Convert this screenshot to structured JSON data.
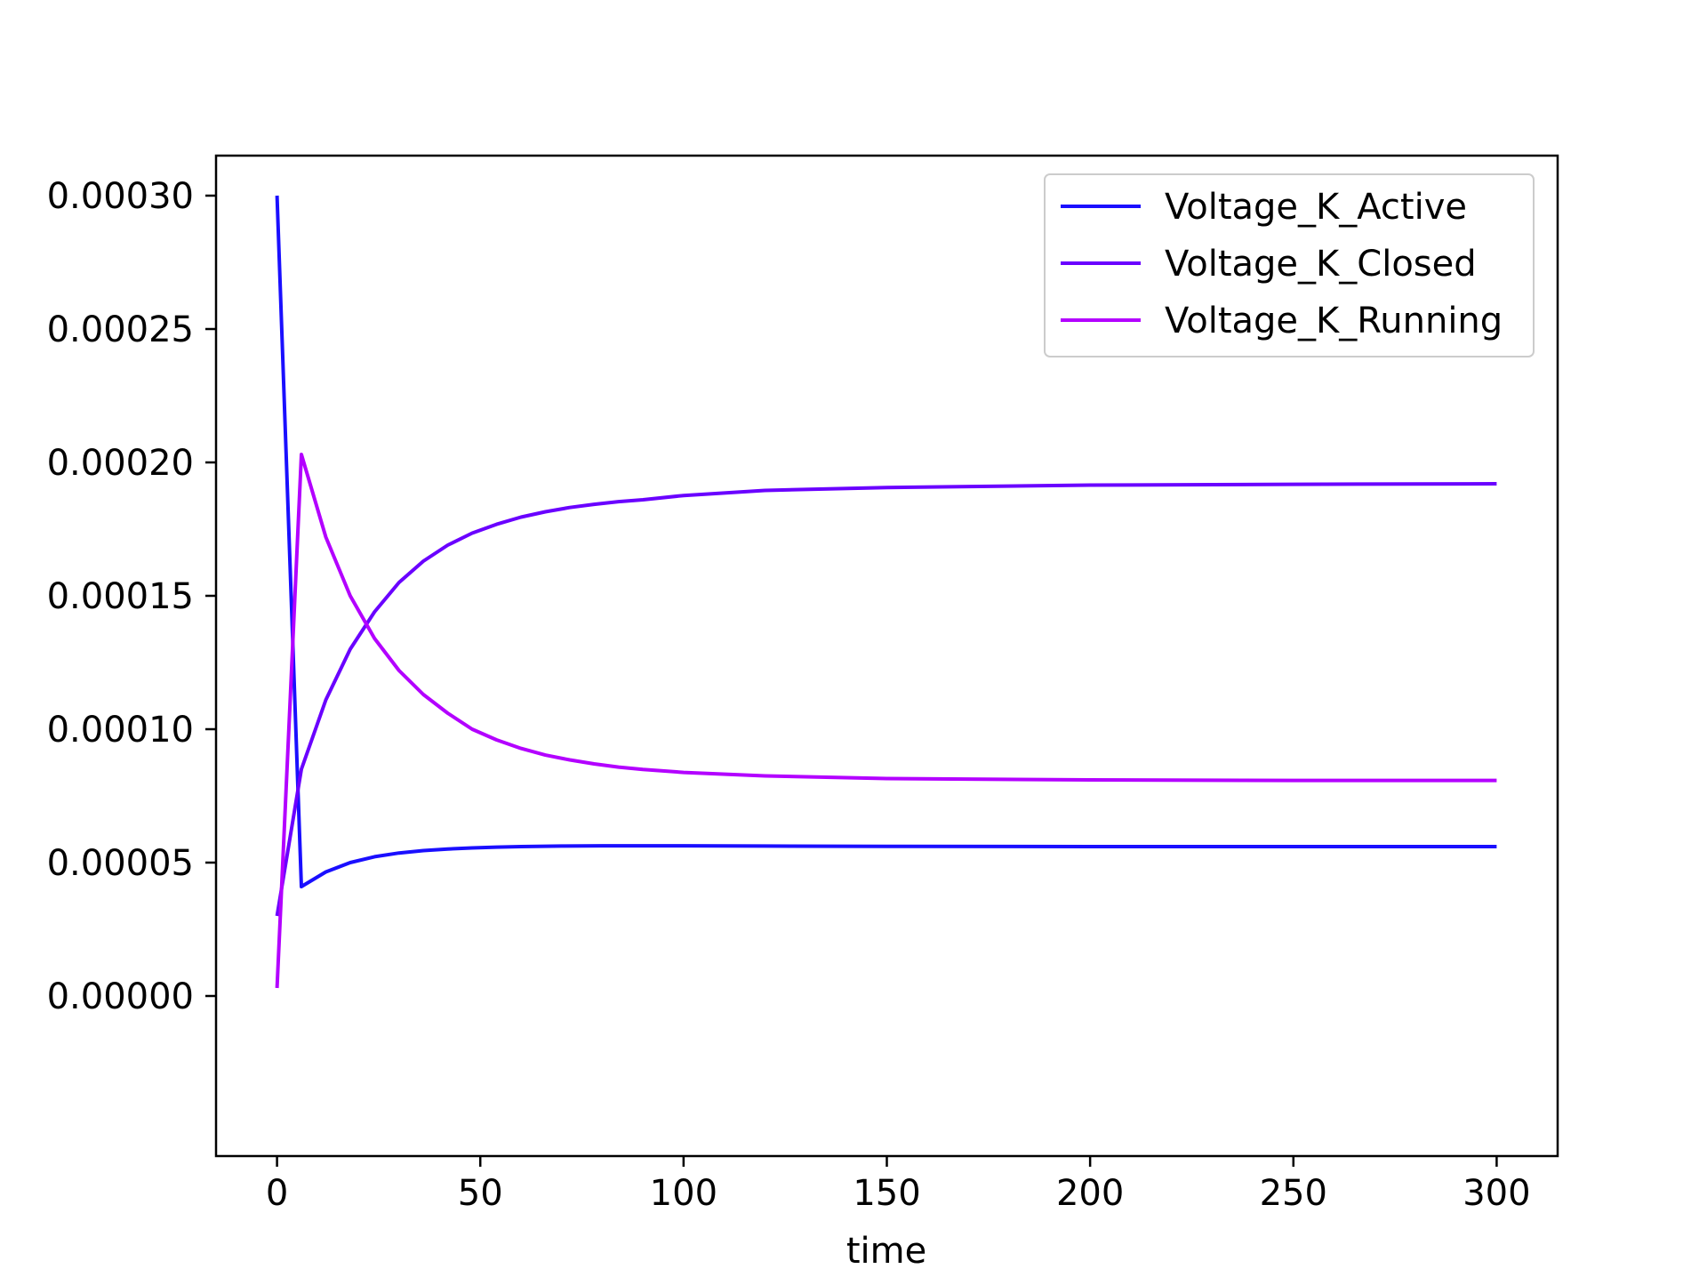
{
  "chart_data": {
    "type": "line",
    "title": "",
    "xlabel": "time",
    "ylabel": "",
    "xlim": [
      -15,
      315
    ],
    "ylim": [
      -6e-05,
      0.000315
    ],
    "xticks": [
      0,
      50,
      100,
      150,
      200,
      250,
      300
    ],
    "xtick_labels": [
      "0",
      "50",
      "100",
      "150",
      "200",
      "250",
      "300"
    ],
    "yticks": [
      0.0,
      5e-05,
      0.0001,
      0.00015,
      0.0002,
      0.00025,
      0.0003
    ],
    "ytick_labels": [
      "0.00000",
      "0.00005",
      "0.00010",
      "0.00015",
      "0.00020",
      "0.00025",
      "0.00030"
    ],
    "grid": false,
    "legend": {
      "position": "top-right"
    },
    "series": [
      {
        "name": "Voltage_K_Active",
        "color": "#1a0fff",
        "x": [
          0,
          6,
          12,
          18,
          24,
          30,
          36,
          42,
          48,
          54,
          60,
          70,
          80,
          90,
          100,
          120,
          150,
          200,
          250,
          300
        ],
        "y": [
          0.0003,
          4.1e-05,
          4.65e-05,
          5e-05,
          5.22e-05,
          5.36e-05,
          5.45e-05,
          5.51e-05,
          5.55e-05,
          5.58e-05,
          5.6e-05,
          5.62e-05,
          5.63e-05,
          5.63e-05,
          5.63e-05,
          5.62e-05,
          5.61e-05,
          5.6e-05,
          5.6e-05,
          5.6e-05
        ]
      },
      {
        "name": "Voltage_K_Closed",
        "color": "#6a00ff",
        "x": [
          0,
          6,
          12,
          18,
          24,
          30,
          36,
          42,
          48,
          54,
          60,
          66,
          72,
          78,
          84,
          90,
          100,
          120,
          150,
          200,
          250,
          300
        ],
        "y": [
          3e-05,
          8.5e-05,
          0.000111,
          0.00013,
          0.000144,
          0.000155,
          0.000163,
          0.000169,
          0.0001735,
          0.0001768,
          0.0001795,
          0.0001815,
          0.0001831,
          0.0001843,
          0.0001853,
          0.000186,
          0.0001876,
          0.0001895,
          0.0001906,
          0.0001915,
          0.0001918,
          0.000192
        ]
      },
      {
        "name": "Voltage_K_Running",
        "color": "#b300ff",
        "x": [
          0,
          6,
          12,
          18,
          24,
          30,
          36,
          42,
          48,
          54,
          60,
          66,
          72,
          78,
          84,
          90,
          100,
          120,
          150,
          200,
          250,
          300
        ],
        "y": [
          3e-06,
          0.000203,
          0.000172,
          0.00015,
          0.000134,
          0.000122,
          0.000113,
          0.000106,
          0.0001,
          9.6e-05,
          9.28e-05,
          9.03e-05,
          8.85e-05,
          8.7e-05,
          8.58e-05,
          8.49e-05,
          8.38e-05,
          8.25e-05,
          8.15e-05,
          8.1e-05,
          8.08e-05,
          8.08e-05
        ]
      }
    ]
  }
}
